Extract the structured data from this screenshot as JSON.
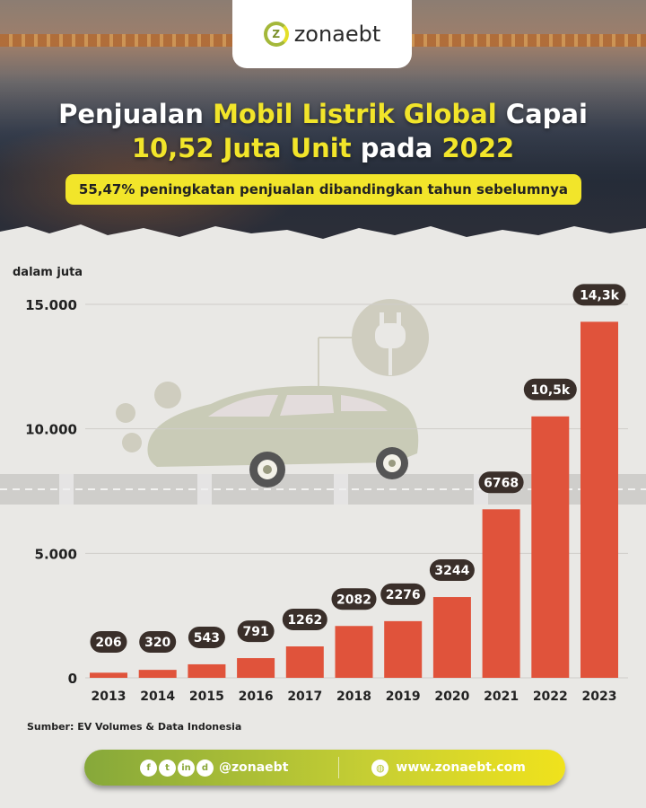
{
  "header": {
    "logo_text": "zonaebt",
    "title_parts": [
      "Penjualan ",
      "Mobil Listrik Global",
      " Capai"
    ],
    "title_line2_parts": [
      "10,52 Juta Unit",
      " pada ",
      "2022"
    ],
    "subtitle": "55,47% peningkatan penjualan dibandingkan tahun sebelumnya"
  },
  "chart_data": {
    "type": "bar",
    "title": "",
    "ylabel": "dalam juta",
    "xlabel": "",
    "categories": [
      "2013",
      "2014",
      "2015",
      "2016",
      "2017",
      "2018",
      "2019",
      "2020",
      "2021",
      "2022",
      "2023"
    ],
    "values": [
      206,
      320,
      543,
      791,
      1262,
      2082,
      2276,
      3244,
      6768,
      10500,
      14300
    ],
    "data_labels": [
      "206",
      "320",
      "543",
      "791",
      "1262",
      "2082",
      "2276",
      "3244",
      "6768",
      "10,5k",
      "14,3k"
    ],
    "ylim": [
      0,
      15000
    ],
    "yticks": [
      0,
      5000,
      10000,
      15000
    ],
    "ytick_labels": [
      "0",
      "5.000",
      "10.000",
      "15.000"
    ],
    "grid": true,
    "bar_color": "#e0533b",
    "label_bg": "#3a2f2a"
  },
  "source": "Sumber: EV Volumes & Data Indonesia",
  "footer": {
    "social_icons": [
      "facebook-icon",
      "twitter-icon",
      "linkedin-icon",
      "tiktok-icon"
    ],
    "social_glyphs": [
      "f",
      "t",
      "in",
      "d"
    ],
    "handle": "@zonaebt",
    "website": "www.zonaebt.com"
  }
}
